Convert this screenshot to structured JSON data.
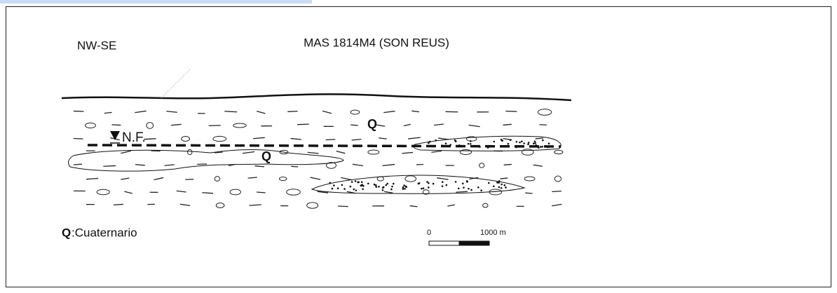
{
  "header": {
    "orientation": "NW-SE",
    "title": "MAS 1814M4 (SON REUS)"
  },
  "labels": {
    "water_table": "N.F.",
    "quaternary": [
      "Q",
      "Q"
    ]
  },
  "legend": {
    "symbol": "Q",
    "text": ":Cuaternario"
  },
  "scale": {
    "start": "0",
    "end": "1000 m"
  }
}
